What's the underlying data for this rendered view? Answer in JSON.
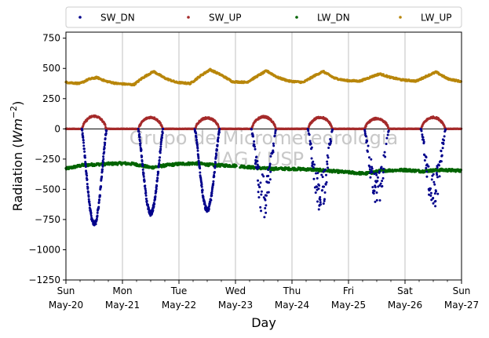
{
  "chart_data": {
    "type": "scatter",
    "title": "",
    "xlabel": "Day",
    "ylabel": "Radiation (Wm⁻²)",
    "ylabel_plain": "Radiation (",
    "ylabel_unit": "Wm",
    "ylabel_exp": "−2",
    "ylabel_close": ")",
    "xlim": [
      0,
      7
    ],
    "ylim": [
      -1250,
      800
    ],
    "grid": "vertical",
    "legend_position": "top",
    "watermark": [
      "Grupo de Micrometeorologia",
      "IAG / USP"
    ],
    "yticks": [
      {
        "v": 750,
        "label": "750"
      },
      {
        "v": 500,
        "label": "500"
      },
      {
        "v": 250,
        "label": "250"
      },
      {
        "v": 0,
        "label": "0"
      },
      {
        "v": -250,
        "label": "−250"
      },
      {
        "v": -500,
        "label": "−500"
      },
      {
        "v": -750,
        "label": "−750"
      },
      {
        "v": -1000,
        "label": "−1000"
      },
      {
        "v": -1250,
        "label": "−1250"
      }
    ],
    "xticks": [
      {
        "v": 0,
        "day": "Sun",
        "date": "May-20"
      },
      {
        "v": 1,
        "day": "Mon",
        "date": "May-21"
      },
      {
        "v": 2,
        "day": "Tue",
        "date": "May-22"
      },
      {
        "v": 3,
        "day": "Wed",
        "date": "May-23"
      },
      {
        "v": 4,
        "day": "Thu",
        "date": "May-24"
      },
      {
        "v": 5,
        "day": "Fri",
        "date": "May-25"
      },
      {
        "v": 6,
        "day": "Sat",
        "date": "May-26"
      },
      {
        "v": 7,
        "day": "Sun",
        "date": "May-27"
      }
    ],
    "series": [
      {
        "name": "SW_DN",
        "color": "#00008b",
        "daily_min": [
          -790,
          -700,
          -670,
          -700,
          -690,
          -660,
          -650
        ],
        "gappy": [
          false,
          false,
          false,
          true,
          true,
          true,
          true
        ]
      },
      {
        "name": "SW_UP",
        "color": "#a52a2a",
        "daily_max": [
          105,
          95,
          90,
          100,
          95,
          85,
          95
        ]
      },
      {
        "name": "LW_DN",
        "color": "#006400",
        "points": [
          [
            0,
            -330
          ],
          [
            0.3,
            -300
          ],
          [
            0.7,
            -290
          ],
          [
            1,
            -285
          ],
          [
            1.2,
            -290
          ],
          [
            1.5,
            -320
          ],
          [
            1.8,
            -300
          ],
          [
            2,
            -290
          ],
          [
            2.3,
            -285
          ],
          [
            2.6,
            -300
          ],
          [
            3,
            -305
          ],
          [
            3.3,
            -320
          ],
          [
            3.6,
            -330
          ],
          [
            4,
            -330
          ],
          [
            4.3,
            -335
          ],
          [
            4.6,
            -345
          ],
          [
            5,
            -360
          ],
          [
            5.3,
            -370
          ],
          [
            5.6,
            -345
          ],
          [
            6,
            -340
          ],
          [
            6.3,
            -350
          ],
          [
            6.6,
            -340
          ],
          [
            7,
            -345
          ]
        ]
      },
      {
        "name": "LW_UP",
        "color": "#b8860b",
        "points": [
          [
            0,
            385
          ],
          [
            0.25,
            375
          ],
          [
            0.4,
            410
          ],
          [
            0.55,
            425
          ],
          [
            0.7,
            395
          ],
          [
            0.9,
            375
          ],
          [
            1.2,
            365
          ],
          [
            1.35,
            420
          ],
          [
            1.55,
            475
          ],
          [
            1.75,
            420
          ],
          [
            1.95,
            385
          ],
          [
            2.2,
            375
          ],
          [
            2.4,
            445
          ],
          [
            2.55,
            490
          ],
          [
            2.75,
            445
          ],
          [
            2.95,
            390
          ],
          [
            3.2,
            385
          ],
          [
            3.4,
            440
          ],
          [
            3.55,
            480
          ],
          [
            3.75,
            425
          ],
          [
            3.95,
            395
          ],
          [
            4.2,
            385
          ],
          [
            4.4,
            440
          ],
          [
            4.55,
            475
          ],
          [
            4.75,
            420
          ],
          [
            4.95,
            400
          ],
          [
            5.2,
            395
          ],
          [
            5.4,
            430
          ],
          [
            5.55,
            455
          ],
          [
            5.75,
            425
          ],
          [
            5.95,
            405
          ],
          [
            6.2,
            395
          ],
          [
            6.4,
            440
          ],
          [
            6.55,
            470
          ],
          [
            6.75,
            415
          ],
          [
            6.95,
            395
          ],
          [
            7,
            390
          ]
        ]
      }
    ]
  }
}
